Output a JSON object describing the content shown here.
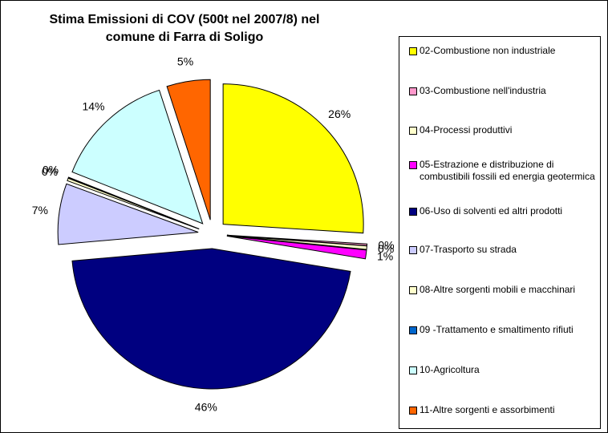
{
  "chart_data": {
    "type": "pie",
    "title": "Stima Emissioni di COV (500t nel 2007/8) nel comune di Farra di Soligo",
    "categories": [
      "02-Combustione non industriale",
      "03-Combustione nell'industria",
      "04-Processi produttivi",
      "05-Estrazione e distribuzione di combustibili fossili ed energia geotermica",
      "06-Uso di solventi ed altri prodotti",
      "07-Trasporto su strada",
      "08-Altre sorgenti mobili e macchinari",
      "09 -Trattamento e smaltimento rifiuti",
      "10-Agricoltura",
      "11-Altre sorgenti e assorbimenti"
    ],
    "values": [
      26,
      0.2,
      0.4,
      1,
      46,
      7,
      0.3,
      0.1,
      14,
      5
    ],
    "value_labels": [
      "26%",
      "0%",
      "0%",
      "1%",
      "46%",
      "7%",
      "0%",
      "0%",
      "14%",
      "5%"
    ],
    "colors": [
      "#ffff00",
      "#ff99cc",
      "#ffffcc",
      "#ff00ff",
      "#000080",
      "#ccccff",
      "#ffffcc",
      "#0066cc",
      "#ccffff",
      "#ff6600"
    ]
  }
}
